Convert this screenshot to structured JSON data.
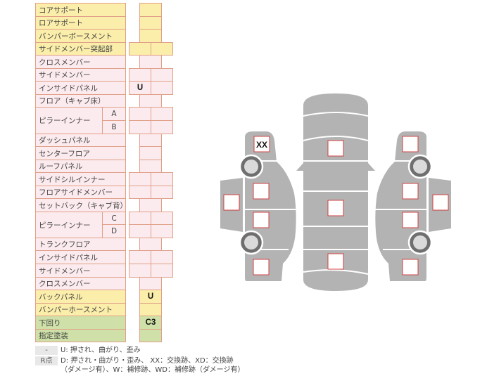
{
  "colors": {
    "yellow": "#fbeeaa",
    "pink": "#fcebee",
    "green": "#cfe1a8",
    "border": "#e0a088",
    "car": "#b3b3b3",
    "mark_border": "#d04040"
  },
  "rows": [
    {
      "label": "コアサポート",
      "color": "y",
      "cells": [
        ""
      ]
    },
    {
      "label": "ロアサポート",
      "color": "y",
      "cells": [
        ""
      ]
    },
    {
      "label": "バンパーボースメント",
      "color": "y",
      "cells": [
        ""
      ]
    },
    {
      "label": "サイドメンバー突起部",
      "color": "y",
      "cells": [
        "",
        ""
      ]
    },
    {
      "label": "クロスメンバー",
      "color": "p",
      "cells": [
        ""
      ]
    },
    {
      "label": "サイドメンバー",
      "color": "p",
      "cells": [
        "",
        ""
      ]
    },
    {
      "label": "インサイドパネル",
      "color": "p",
      "cells": [
        "U",
        ""
      ]
    },
    {
      "label": "フロア（キャブ床）",
      "color": "p",
      "cells": [
        ""
      ]
    },
    {
      "label": "ピラーインナー",
      "sub": "A",
      "color": "p",
      "cells": [
        "",
        ""
      ]
    },
    {
      "label": "",
      "sub": "B",
      "color": "p",
      "cells": [
        "",
        ""
      ]
    },
    {
      "label": "ダッシュパネル",
      "color": "p",
      "cells": [
        ""
      ]
    },
    {
      "label": "センターフロア",
      "color": "p",
      "cells": [
        ""
      ]
    },
    {
      "label": "ルーフパネル",
      "color": "p",
      "cells": [
        ""
      ]
    },
    {
      "label": "サイドシルインナー",
      "color": "p",
      "cells": [
        "",
        ""
      ]
    },
    {
      "label": "フロアサイドメンバー",
      "color": "p",
      "cells": [
        "",
        ""
      ]
    },
    {
      "label": "セットバック（キャブ背）",
      "color": "p",
      "cells": [
        ""
      ]
    },
    {
      "label": "ピラーインナー",
      "sub": "C",
      "color": "p",
      "cells": [
        "",
        ""
      ]
    },
    {
      "label": "",
      "sub": "D",
      "color": "p",
      "cells": [
        "",
        ""
      ]
    },
    {
      "label": "トランクフロア",
      "color": "p",
      "cells": [
        ""
      ]
    },
    {
      "label": "インサイドパネル",
      "color": "p",
      "cells": [
        "",
        ""
      ]
    },
    {
      "label": "サイドメンバー",
      "color": "p",
      "cells": [
        "",
        ""
      ]
    },
    {
      "label": "クロスメンバー",
      "color": "p",
      "cells": [
        ""
      ]
    },
    {
      "label": "バックパネル",
      "color": "y",
      "cells": [
        "U"
      ]
    },
    {
      "label": "バンパーホースメント",
      "color": "y",
      "cells": [
        ""
      ]
    },
    {
      "label": "下回り",
      "color": "g",
      "cells": [
        "C3"
      ]
    },
    {
      "label": "指定塗装",
      "color": "g",
      "cells": [
        ""
      ]
    }
  ],
  "diagram": {
    "marks": {
      "left_front": "XX"
    }
  },
  "legend": {
    "key1": "-",
    "text1": "U: 押され、曲がり、歪み",
    "key2": "R点",
    "text2": "D: 押され・曲がり・歪み、 XX：交換跡、XD：交換跡",
    "text3": "（ダメージ有）、W：補修跡、WD：補修跡（ダメージ有）"
  }
}
